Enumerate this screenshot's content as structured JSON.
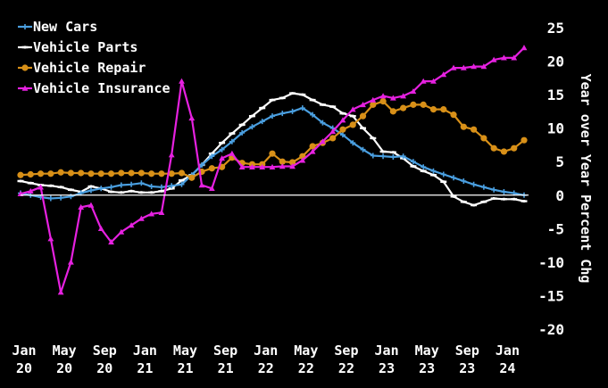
{
  "chart_data": {
    "type": "line",
    "ylabel": "Year over Year Percent Chg",
    "ylim": [
      -20,
      25
    ],
    "yticks": [
      25,
      20,
      15,
      10,
      5,
      0,
      -5,
      -10,
      -15,
      -20
    ],
    "xlabels": [
      {
        "top": "Jan",
        "bottom": "20",
        "idx": 0
      },
      {
        "top": "May",
        "bottom": "20",
        "idx": 4
      },
      {
        "top": "Sep",
        "bottom": "20",
        "idx": 8
      },
      {
        "top": "Jan",
        "bottom": "21",
        "idx": 12
      },
      {
        "top": "May",
        "bottom": "21",
        "idx": 16
      },
      {
        "top": "Sep",
        "bottom": "21",
        "idx": 20
      },
      {
        "top": "Jan",
        "bottom": "22",
        "idx": 24
      },
      {
        "top": "May",
        "bottom": "22",
        "idx": 28
      },
      {
        "top": "Sep",
        "bottom": "22",
        "idx": 32
      },
      {
        "top": "Jan",
        "bottom": "23",
        "idx": 36
      },
      {
        "top": "May",
        "bottom": "23",
        "idx": 40
      },
      {
        "top": "Sep",
        "bottom": "23",
        "idx": 44
      },
      {
        "top": "Jan",
        "bottom": "24",
        "idx": 48
      }
    ],
    "n_points": 51,
    "grid": false,
    "legend_position": "top-left",
    "series": [
      {
        "name": "New Cars",
        "color": "#4a9fe0",
        "marker": "plus",
        "values": [
          0.3,
          0.0,
          -0.3,
          -0.5,
          -0.4,
          -0.2,
          0.3,
          0.7,
          1.0,
          1.2,
          1.5,
          1.6,
          1.8,
          1.3,
          1.2,
          1.4,
          1.6,
          3.0,
          4.5,
          5.8,
          6.8,
          8.0,
          9.3,
          10.2,
          11.0,
          11.8,
          12.2,
          12.5,
          13.0,
          12.0,
          10.8,
          10.0,
          9.0,
          7.8,
          6.8,
          5.9,
          5.8,
          5.7,
          5.8,
          5.0,
          4.2,
          3.6,
          3.1,
          2.6,
          2.1,
          1.6,
          1.2,
          0.8,
          0.5,
          0.3,
          0.0
        ]
      },
      {
        "name": "Vehicle Parts",
        "color": "#ffffff",
        "marker": "cross",
        "values": [
          2.1,
          1.8,
          1.5,
          1.4,
          1.2,
          0.8,
          0.5,
          1.3,
          1.0,
          0.5,
          0.4,
          0.6,
          0.4,
          0.4,
          0.6,
          1.0,
          2.2,
          3.0,
          4.5,
          6.2,
          7.8,
          9.2,
          10.5,
          11.8,
          13.0,
          14.2,
          14.5,
          15.2,
          15.0,
          14.2,
          13.5,
          13.2,
          12.2,
          11.8,
          10.0,
          8.5,
          6.5,
          6.4,
          5.5,
          4.3,
          3.6,
          3.0,
          2.0,
          -0.2,
          -1.0,
          -1.5,
          -1.0,
          -0.5,
          -0.6,
          -0.6,
          -0.9
        ]
      },
      {
        "name": "Vehicle Repair",
        "color": "#d89018",
        "marker": "circle",
        "values": [
          3.0,
          3.1,
          3.2,
          3.2,
          3.4,
          3.3,
          3.3,
          3.2,
          3.2,
          3.2,
          3.3,
          3.3,
          3.3,
          3.2,
          3.2,
          3.2,
          3.3,
          2.6,
          3.5,
          4.0,
          4.2,
          5.6,
          4.8,
          4.6,
          4.6,
          6.2,
          5.0,
          4.9,
          5.8,
          7.3,
          7.8,
          8.5,
          9.8,
          10.5,
          11.8,
          13.5,
          14.0,
          12.5,
          13.0,
          13.5,
          13.5,
          12.8,
          12.8,
          12.0,
          10.2,
          9.8,
          8.5,
          7.0,
          6.5,
          7.0,
          8.2
        ]
      },
      {
        "name": "Vehicle Insurance",
        "color": "#e621e0",
        "marker": "triangle",
        "values": [
          0.2,
          0.6,
          1.2,
          -6.5,
          -14.5,
          -10.0,
          -1.8,
          -1.5,
          -5.0,
          -7.0,
          -5.5,
          -4.5,
          -3.5,
          -2.8,
          -2.6,
          6.0,
          17.0,
          11.5,
          1.5,
          1.0,
          5.5,
          6.2,
          4.2,
          4.2,
          4.2,
          4.2,
          4.3,
          4.3,
          5.2,
          6.5,
          8.0,
          9.5,
          11.2,
          12.8,
          13.5,
          14.2,
          14.8,
          14.5,
          14.8,
          15.5,
          17.0,
          17.0,
          18.0,
          19.0,
          19.0,
          19.2,
          19.2,
          20.2,
          20.5,
          20.5,
          22.0
        ]
      }
    ]
  }
}
